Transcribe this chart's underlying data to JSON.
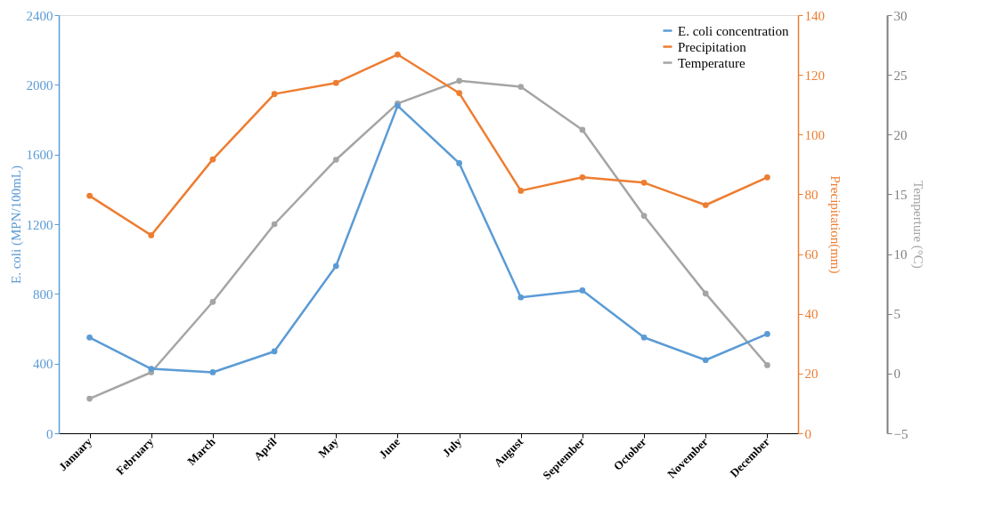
{
  "chart_data": {
    "type": "line",
    "categories": [
      "January",
      "February",
      "March",
      "April",
      "May",
      "June",
      "July",
      "August",
      "September",
      "October",
      "November",
      "December"
    ],
    "ylabel": "E. coli (MPN/100mL)",
    "y2label": "Precipitation(mm)",
    "y3label": "Temperture (°C)",
    "ylim": [
      0,
      2400
    ],
    "yticks": [
      0,
      400,
      800,
      1200,
      1600,
      2000,
      2400
    ],
    "y2lim": [
      0,
      140
    ],
    "y2ticks": [
      0,
      20,
      40,
      60,
      80,
      100,
      120,
      140
    ],
    "y3lim": [
      -5,
      30
    ],
    "y3ticks": [
      -5,
      0,
      5,
      10,
      15,
      20,
      25,
      30
    ],
    "series": [
      {
        "name": "E. coli concentration",
        "color": "#5b9bd5",
        "axis": "y",
        "values": [
          550,
          370,
          350,
          470,
          960,
          1880,
          1550,
          780,
          820,
          550,
          420,
          570
        ]
      },
      {
        "name": "Precipitation",
        "color": "#ed7d31",
        "axis": "y2",
        "values": [
          79.5,
          66.3,
          91.7,
          113.6,
          117.3,
          126.8,
          113.9,
          81.2,
          85.7,
          83.9,
          76.4,
          85.7
        ]
      },
      {
        "name": "Temperature",
        "color": "#a5a5a5",
        "axis": "y3",
        "values": [
          -2.1,
          0.1,
          6.0,
          12.5,
          17.9,
          22.6,
          24.5,
          24.0,
          20.4,
          13.2,
          6.7,
          0.7
        ]
      }
    ],
    "legend": "top right",
    "marker": "circle",
    "line_style": "solid",
    "grid": false
  }
}
